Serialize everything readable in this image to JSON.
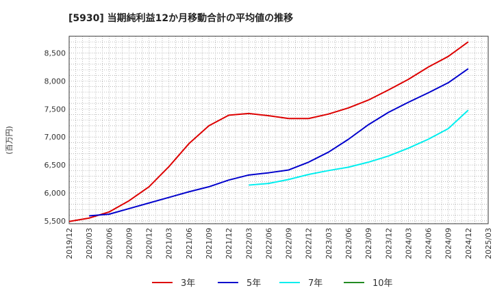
{
  "chart_data": {
    "type": "line",
    "title": "[5930]  当期純利益12か月移動合計の平均値の推移",
    "ylabel": "(百万円)",
    "xlabel": "",
    "ylim": [
      5450,
      8800
    ],
    "yticks": [
      5500,
      6000,
      6500,
      7000,
      7500,
      8000,
      8500
    ],
    "ytick_labels": [
      "5,500",
      "6,000",
      "6,500",
      "7,000",
      "7,500",
      "8,000",
      "8,500"
    ],
    "xlim": [
      "2019-12",
      "2025-03"
    ],
    "xticks": [
      "2019/12",
      "2020/03",
      "2020/06",
      "2020/09",
      "2020/12",
      "2021/03",
      "2021/06",
      "2021/09",
      "2021/12",
      "2022/03",
      "2022/06",
      "2022/09",
      "2022/12",
      "2023/03",
      "2023/06",
      "2023/09",
      "2023/12",
      "2024/03",
      "2024/06",
      "2024/09",
      "2024/12",
      "2025/03"
    ],
    "grid": true,
    "legend_position": "bottom",
    "series": [
      {
        "name": "3年",
        "color": "#dd0000",
        "points": [
          [
            "2019-12",
            5490
          ],
          [
            "2020-03",
            5550
          ],
          [
            "2020-06",
            5660
          ],
          [
            "2020-09",
            5860
          ],
          [
            "2020-12",
            6110
          ],
          [
            "2021-03",
            6470
          ],
          [
            "2021-06",
            6880
          ],
          [
            "2021-09",
            7200
          ],
          [
            "2021-12",
            7390
          ],
          [
            "2022-03",
            7420
          ],
          [
            "2022-06",
            7380
          ],
          [
            "2022-09",
            7330
          ],
          [
            "2022-12",
            7330
          ],
          [
            "2023-03",
            7410
          ],
          [
            "2023-06",
            7520
          ],
          [
            "2023-09",
            7660
          ],
          [
            "2023-12",
            7840
          ],
          [
            "2024-03",
            8030
          ],
          [
            "2024-06",
            8250
          ],
          [
            "2024-09",
            8440
          ],
          [
            "2024-12",
            8700
          ]
        ]
      },
      {
        "name": "5年",
        "color": "#0000cc",
        "points": [
          [
            "2020-03",
            5590
          ],
          [
            "2020-06",
            5620
          ],
          [
            "2020-09",
            5720
          ],
          [
            "2020-12",
            5820
          ],
          [
            "2021-03",
            5920
          ],
          [
            "2021-06",
            6020
          ],
          [
            "2021-09",
            6110
          ],
          [
            "2021-12",
            6230
          ],
          [
            "2022-03",
            6320
          ],
          [
            "2022-06",
            6360
          ],
          [
            "2022-09",
            6410
          ],
          [
            "2022-12",
            6550
          ],
          [
            "2023-03",
            6730
          ],
          [
            "2023-06",
            6960
          ],
          [
            "2023-09",
            7220
          ],
          [
            "2023-12",
            7440
          ],
          [
            "2024-03",
            7620
          ],
          [
            "2024-06",
            7790
          ],
          [
            "2024-09",
            7970
          ],
          [
            "2024-12",
            8220
          ]
        ]
      },
      {
        "name": "7年",
        "color": "#00eeee",
        "points": [
          [
            "2022-03",
            6140
          ],
          [
            "2022-06",
            6170
          ],
          [
            "2022-09",
            6240
          ],
          [
            "2022-12",
            6330
          ],
          [
            "2023-03",
            6400
          ],
          [
            "2023-06",
            6460
          ],
          [
            "2023-09",
            6550
          ],
          [
            "2023-12",
            6660
          ],
          [
            "2024-03",
            6800
          ],
          [
            "2024-06",
            6960
          ],
          [
            "2024-09",
            7150
          ],
          [
            "2024-12",
            7480
          ]
        ]
      },
      {
        "name": "10年",
        "color": "#228b22",
        "points": []
      }
    ]
  }
}
